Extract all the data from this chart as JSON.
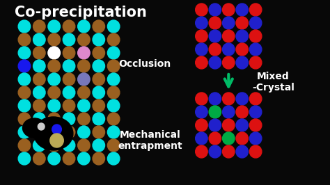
{
  "bg_color": "#080808",
  "title": "Co-precipitation",
  "title_color": "#ffffff",
  "title_fontsize": 15,
  "occlusion_label": "Occlusion",
  "mechanical_label": "Mechanical\nentrapment",
  "mixed_crystal_label": "Mixed\n-Crystal",
  "cyan_color": "#00e0e0",
  "brown_color": "#9a6020",
  "white_color": "#ffffff",
  "pink_color": "#dd88cc",
  "blue_dot_color": "#1818ee",
  "light_blue_color": "#7777bb",
  "red_color": "#dd1111",
  "dark_blue_color": "#2020cc",
  "green_color": "#00aa44",
  "arrow_color": "#00bb66",
  "occ_rows": 6,
  "occ_cols": 7,
  "mech_rows": 5,
  "mech_cols": 7,
  "crystal_rows": 5,
  "crystal_cols": 5
}
